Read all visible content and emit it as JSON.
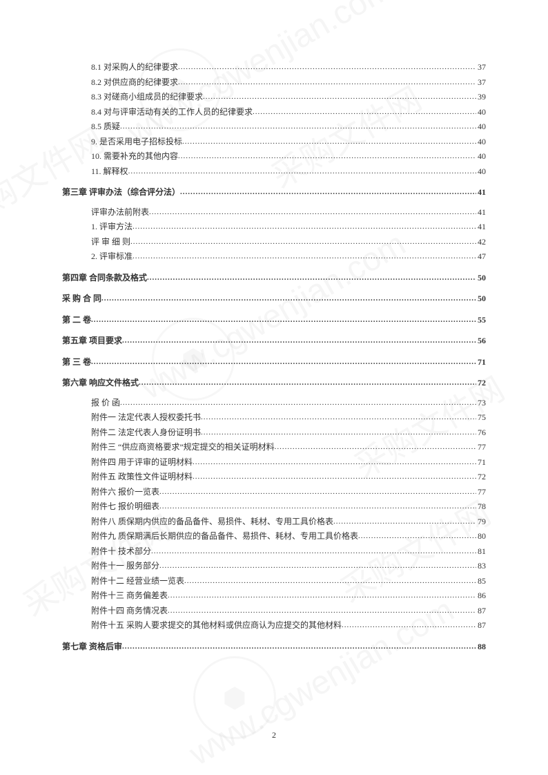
{
  "page_number": "2",
  "background_color": "#ffffff",
  "text_color": "#333333",
  "font_size_body": 12,
  "font_size_page_num": 12,
  "watermark_text": "采购文件网",
  "watermark_url": "www.cgwenjian.com",
  "toc": [
    {
      "label": "8.1 对采购人的纪律要求",
      "page": "37",
      "indent": 2,
      "bold": false
    },
    {
      "label": "8.2 对供应商的纪律要求",
      "page": "37",
      "indent": 2,
      "bold": false
    },
    {
      "label": "8.3 对磋商小组成员的纪律要求",
      "page": "39",
      "indent": 2,
      "bold": false
    },
    {
      "label": "8.4 对与评审活动有关的工作人员的纪律要求",
      "page": "40",
      "indent": 2,
      "bold": false
    },
    {
      "label": "8.5 质疑",
      "page": "40",
      "indent": 2,
      "bold": false
    },
    {
      "label": "9. 是否采用电子招标投标",
      "page": "40",
      "indent": 1,
      "bold": false
    },
    {
      "label": "10. 需要补充的其他内容",
      "page": "40",
      "indent": 1,
      "bold": false
    },
    {
      "label": "11. 解释权",
      "page": "40",
      "indent": 1,
      "bold": false
    },
    {
      "label": "第三章  评审办法（综合评分法）",
      "page": " 41",
      "indent": 0,
      "bold": true
    },
    {
      "label": "评审办法前附表",
      "page": "41",
      "indent": 1,
      "bold": false
    },
    {
      "label": "1. 评审方法",
      "page": "41",
      "indent": 1,
      "bold": false
    },
    {
      "label": "评 审 细 则",
      "page": "42",
      "indent": 1,
      "bold": false
    },
    {
      "label": "2. 评审标准",
      "page": "47",
      "indent": 1,
      "bold": false
    },
    {
      "label": "第四章  合同条款及格式",
      "page": " 50",
      "indent": 0,
      "bold": true
    },
    {
      "label": "采 购 合 同",
      "page": " 50",
      "indent": 0,
      "bold": true
    },
    {
      "label": "第 二 卷",
      "page": " 55",
      "indent": 0,
      "bold": true
    },
    {
      "label": "第五章   项目要求",
      "page": " 56",
      "indent": 0,
      "bold": true
    },
    {
      "label": "第 三 卷",
      "page": " 71",
      "indent": 0,
      "bold": true
    },
    {
      "label": "第六章  响应文件格式",
      "page": " 72",
      "indent": 0,
      "bold": true
    },
    {
      "label": "报 价 函",
      "page": "73",
      "indent": 1,
      "bold": false
    },
    {
      "label": "附件一  法定代表人授权委托书",
      "page": "75",
      "indent": 1,
      "bold": false
    },
    {
      "label": "附件二   法定代表人身份证明书",
      "page": "76",
      "indent": 1,
      "bold": false
    },
    {
      "label": "附件三   “供应商资格要求”规定提交的相关证明材料",
      "page": "77",
      "indent": 1,
      "bold": false
    },
    {
      "label": "附件四  用于评审的证明材料",
      "page": "71",
      "indent": 1,
      "bold": false
    },
    {
      "label": "附件五  政策性文件证明材料",
      "page": "72",
      "indent": 1,
      "bold": false
    },
    {
      "label": "附件六   报价一览表",
      "page": "77",
      "indent": 1,
      "bold": false
    },
    {
      "label": "附件七   报价明细表",
      "page": "78",
      "indent": 1,
      "bold": false
    },
    {
      "label": "附件八   质保期内供应的备品备件、易损件、耗材、专用工具价格表",
      "page": "79",
      "indent": 1,
      "bold": false
    },
    {
      "label": "附件九   质保期满后长期供应的备品备件、易损件、耗材、专用工具价格表",
      "page": "80",
      "indent": 1,
      "bold": false
    },
    {
      "label": "附件十   技术部分",
      "page": "81",
      "indent": 1,
      "bold": false
    },
    {
      "label": "附件十一   服务部分",
      "page": "83",
      "indent": 1,
      "bold": false
    },
    {
      "label": "附件十二   经营业绩一览表",
      "page": "85",
      "indent": 1,
      "bold": false
    },
    {
      "label": "附件十三   商务偏差表",
      "page": "86",
      "indent": 1,
      "bold": false
    },
    {
      "label": "附件十四   商务情况表",
      "page": "87",
      "indent": 1,
      "bold": false
    },
    {
      "label": "附件十五   采购人要求提交的其他材料或供应商认为应提交的其他材料",
      "page": "87",
      "indent": 1,
      "bold": false
    },
    {
      "label": "第七章   资格后审",
      "page": " 88",
      "indent": 0,
      "bold": true
    }
  ]
}
